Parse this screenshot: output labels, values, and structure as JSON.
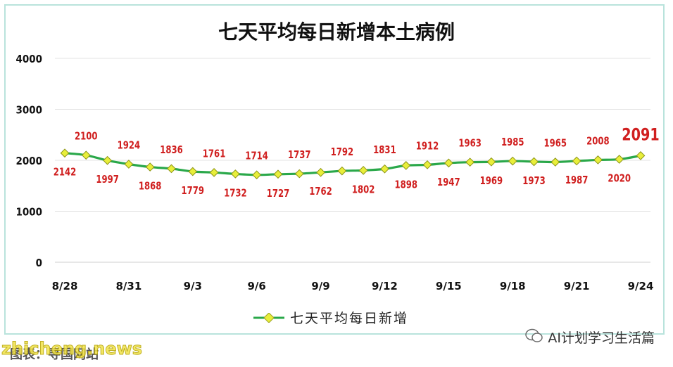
{
  "chart_data": {
    "type": "line",
    "title": "七天平均每日新增本土病例",
    "x": [
      "8/28",
      "8/29",
      "8/30",
      "8/31",
      "9/1",
      "9/2",
      "9/3",
      "9/4",
      "9/5",
      "9/6",
      "9/7",
      "9/8",
      "9/9",
      "9/10",
      "9/11",
      "9/12",
      "9/13",
      "9/14",
      "9/15",
      "9/16",
      "9/17",
      "9/18",
      "9/19",
      "9/20",
      "9/21",
      "9/22",
      "9/23",
      "9/24"
    ],
    "xtick_labels": [
      "8/28",
      "8/31",
      "9/3",
      "9/6",
      "9/9",
      "9/12",
      "9/15",
      "9/18",
      "9/21",
      "9/24"
    ],
    "series": [
      {
        "name": "七天平均每日新增",
        "color": "#2aa84a",
        "marker_color": "#e8ee3a",
        "values": [
          2142,
          2100,
          1997,
          1924,
          1868,
          1836,
          1779,
          1761,
          1732,
          1714,
          1727,
          1737,
          1762,
          1792,
          1802,
          1831,
          1898,
          1912,
          1947,
          1963,
          1969,
          1985,
          1973,
          1965,
          1987,
          2008,
          2020,
          2091
        ]
      }
    ],
    "ylim": [
      0,
      4000
    ],
    "yticks": [
      0,
      1000,
      2000,
      3000,
      4000
    ],
    "grid": true,
    "label_color": "#d01f1f",
    "highlight_last": true,
    "legend_position": "bottom"
  },
  "legend": {
    "label": "七天平均每日新增"
  },
  "watermark": {
    "text": "AI计划学习生活篇"
  },
  "footer": {
    "source": "图表：寻国网站",
    "site": "zhicheng.news"
  }
}
